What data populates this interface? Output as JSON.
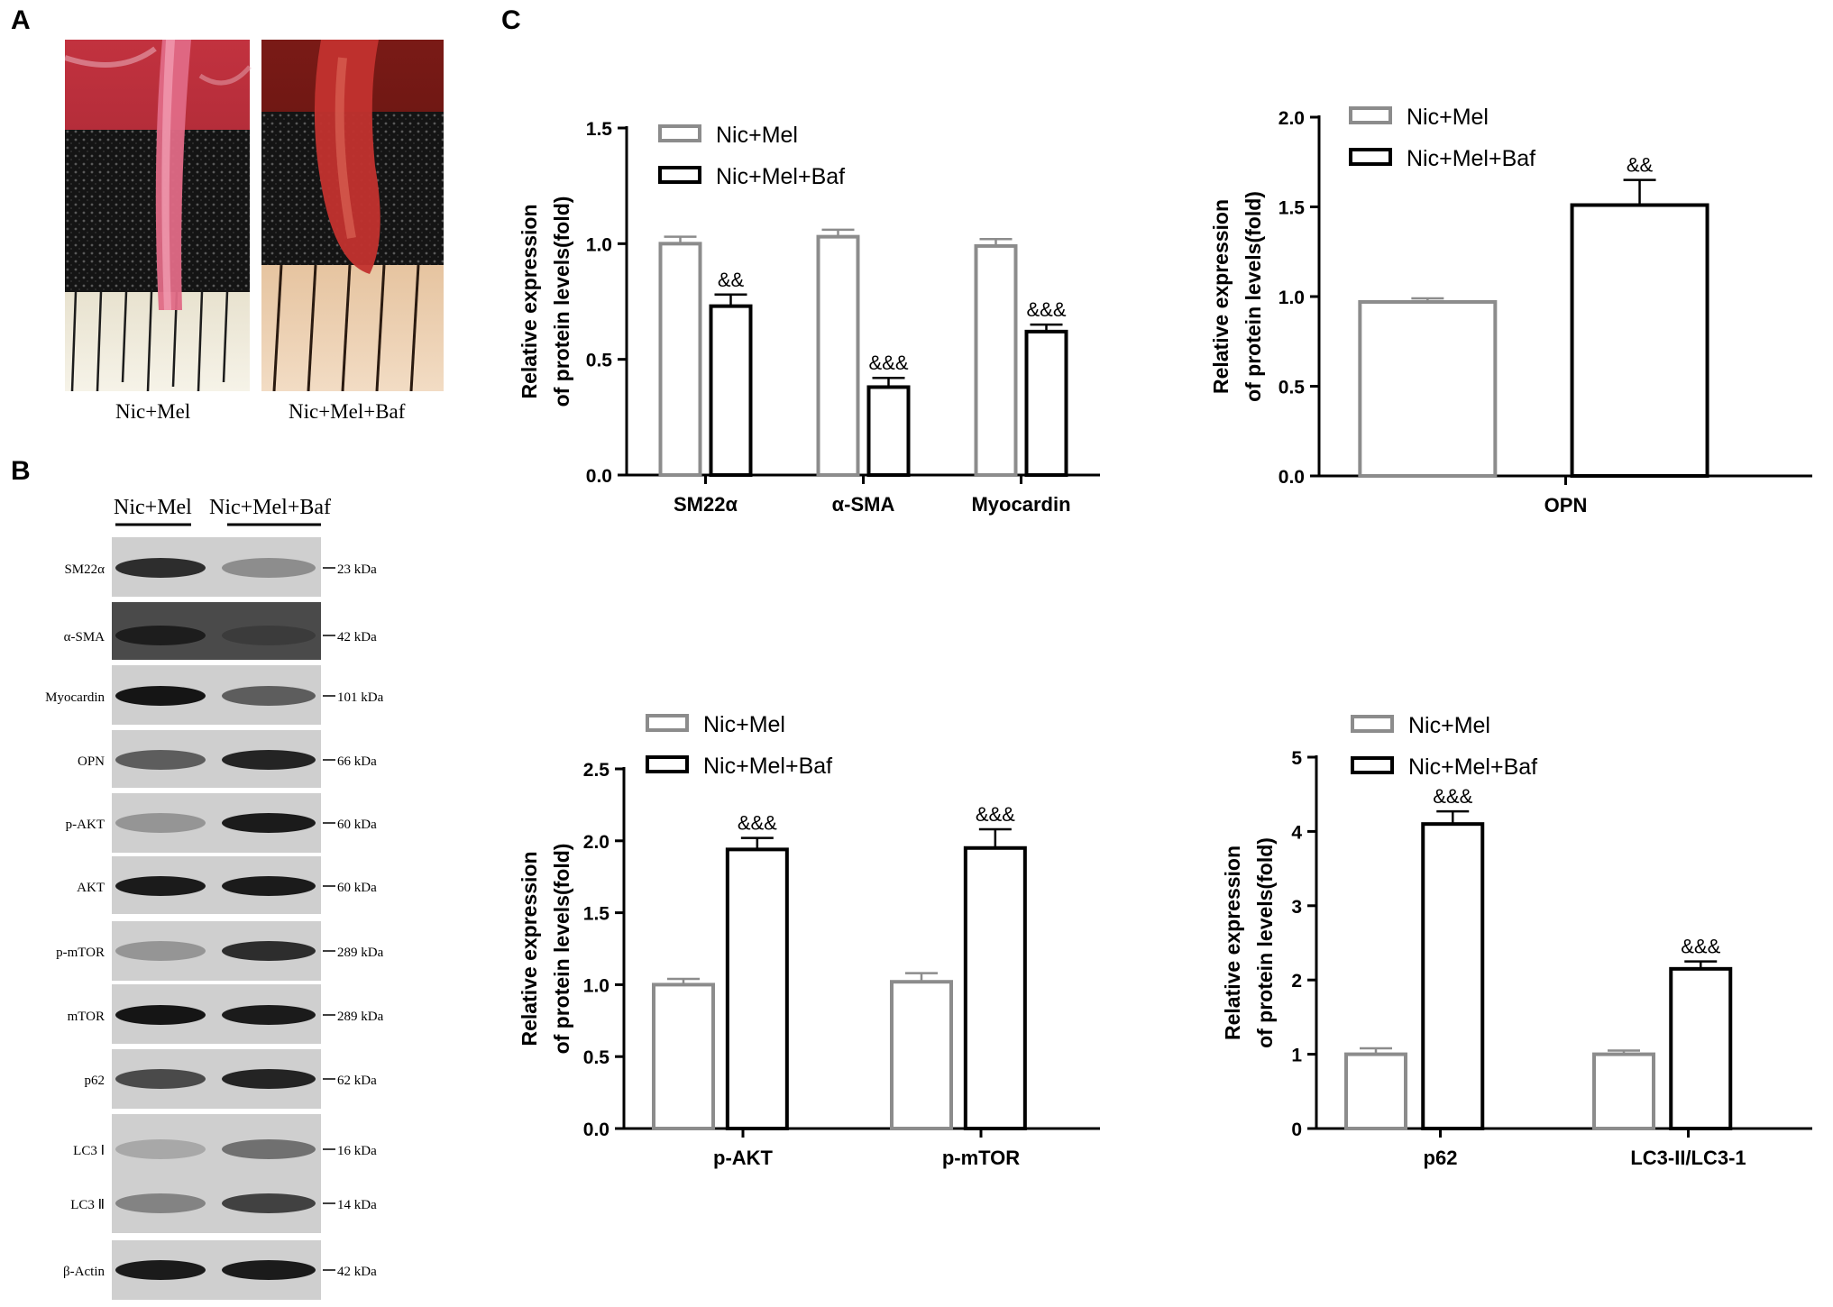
{
  "panels": {
    "a": "A",
    "b": "B",
    "c": "C"
  },
  "photos": {
    "left_caption": "Nic+Mel",
    "right_caption": "Nic+Mel+Baf"
  },
  "blots": {
    "group1": "Nic+Mel",
    "group2": "Nic+Mel+Baf",
    "rows": [
      {
        "label": "SM22α",
        "kda": "23  kDa"
      },
      {
        "label": "α-SMA",
        "kda": "42  kDa"
      },
      {
        "label": "Myocardin",
        "kda": "101 kDa"
      },
      {
        "label": "OPN",
        "kda": "66  kDa"
      },
      {
        "label": "p-AKT",
        "kda": "60 kDa"
      },
      {
        "label": "AKT",
        "kda": "60 kDa"
      },
      {
        "label": "p-mTOR",
        "kda": "289 kDa"
      },
      {
        "label": "mTOR",
        "kda": "289 kDa"
      },
      {
        "label": "p62",
        "kda": "62  kDa"
      },
      {
        "label": "LC3 Ⅰ",
        "kda": "16 kDa"
      },
      {
        "label": "LC3 Ⅱ",
        "kda": "14 kDa"
      },
      {
        "label": "β-Actin",
        "kda": "42  kDa"
      }
    ]
  },
  "colors": {
    "nic_mel": "#8c8c8c",
    "nic_mel_baf": "#000000"
  },
  "chart_data": [
    {
      "type": "bar",
      "categories": [
        "SM22α",
        "α-SMA",
        "Myocardin"
      ],
      "series": [
        {
          "name": "Nic+Mel",
          "values": [
            1.0,
            1.03,
            0.99
          ],
          "errors": [
            0.03,
            0.03,
            0.03
          ]
        },
        {
          "name": "Nic+Mel+Baf",
          "values": [
            0.73,
            0.38,
            0.62
          ],
          "errors": [
            0.05,
            0.04,
            0.03
          ]
        }
      ],
      "annotations": [
        "&&",
        "&&&",
        "&&&"
      ],
      "ylabel_line1": "Relative expression",
      "ylabel_line2": "of protein levels(fold)",
      "ylim": [
        0,
        1.5
      ],
      "yticks": [
        "0.0",
        "0.5",
        "1.0",
        "1.5"
      ],
      "legend": "top-left"
    },
    {
      "type": "bar",
      "categories": [
        "OPN"
      ],
      "series": [
        {
          "name": "Nic+Mel",
          "values": [
            0.97
          ],
          "errors": [
            0.02
          ]
        },
        {
          "name": "Nic+Mel+Baf",
          "values": [
            1.51
          ],
          "errors": [
            0.14
          ]
        }
      ],
      "annotations": [
        "&&"
      ],
      "ylabel_line1": "Relative expression",
      "ylabel_line2": "of protein levels(fold)",
      "ylim": [
        0,
        2.0
      ],
      "yticks": [
        "0.0",
        "0.5",
        "1.0",
        "1.5",
        "2.0"
      ],
      "legend": "top-left"
    },
    {
      "type": "bar",
      "categories": [
        "p-AKT",
        "p-mTOR"
      ],
      "series": [
        {
          "name": "Nic+Mel",
          "values": [
            1.0,
            1.02
          ],
          "errors": [
            0.04,
            0.06
          ]
        },
        {
          "name": "Nic+Mel+Baf",
          "values": [
            1.94,
            1.95
          ],
          "errors": [
            0.08,
            0.13
          ]
        }
      ],
      "annotations": [
        "&&&",
        "&&&"
      ],
      "ylabel_line1": "Relative expression",
      "ylabel_line2": "of protein levels(fold)",
      "ylim": [
        0,
        2.5
      ],
      "yticks": [
        "0.0",
        "0.5",
        "1.0",
        "1.5",
        "2.0",
        "2.5"
      ],
      "legend": "top-left"
    },
    {
      "type": "bar",
      "categories": [
        "p62",
        "LC3-II/LC3-1"
      ],
      "series": [
        {
          "name": "Nic+Mel",
          "values": [
            1.0,
            1.0
          ],
          "errors": [
            0.08,
            0.05
          ]
        },
        {
          "name": "Nic+Mel+Baf",
          "values": [
            4.1,
            2.15
          ],
          "errors": [
            0.17,
            0.1
          ]
        }
      ],
      "annotations": [
        "&&&",
        "&&&"
      ],
      "ylabel_line1": "Relative expression",
      "ylabel_line2": "of protein levels(fold)",
      "ylim": [
        0,
        5
      ],
      "yticks": [
        "0",
        "1",
        "2",
        "3",
        "4",
        "5"
      ],
      "legend": "top-left"
    }
  ]
}
